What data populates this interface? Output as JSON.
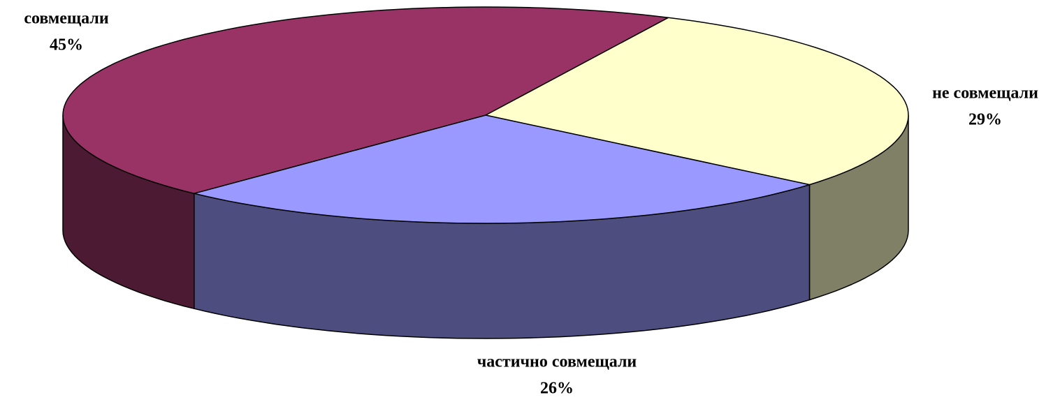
{
  "chart_data": {
    "type": "pie",
    "categories": [
      "не совмещали",
      "частично совмещали",
      "совмещали"
    ],
    "values": [
      29,
      26,
      45
    ],
    "value_labels": [
      "29%",
      "26%",
      "45%"
    ],
    "colors": [
      "#ffffcc",
      "#9999ff",
      "#993366"
    ]
  }
}
